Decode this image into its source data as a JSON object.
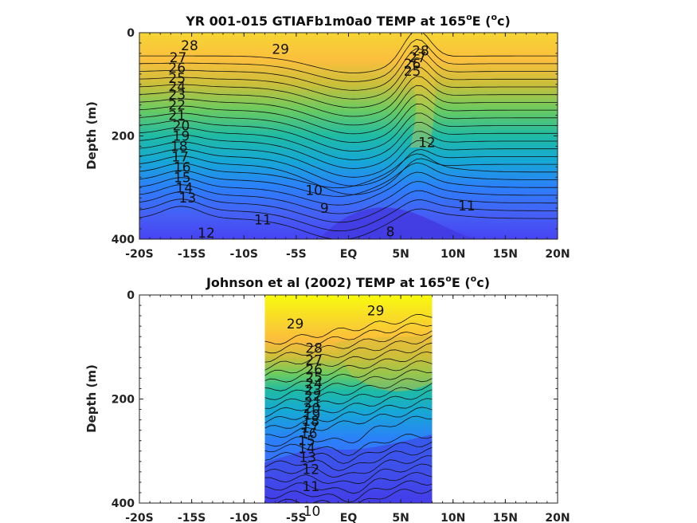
{
  "chart_data": [
    {
      "type": "heatmap",
      "subtype": "filled-contour",
      "title_main": "YR 001-015 GTIAFb1m0a0 TEMP at 165",
      "title_sup": "o",
      "title_rest": "E (",
      "title_sup2": "o",
      "title_end": "c)",
      "ylabel": "Depth (m)",
      "xlim": [
        -20,
        20
      ],
      "ylim": [
        0,
        400
      ],
      "y_reversed": true,
      "data_extent_x": [
        -20,
        20
      ],
      "x_tick_labels": [
        "-20S",
        "-15S",
        "-10S",
        "-5S",
        "EQ",
        "5N",
        "10N",
        "15N",
        "20N"
      ],
      "x_tick_values": [
        -20,
        -15,
        -10,
        -5,
        0,
        5,
        10,
        15,
        20
      ],
      "y_tick_labels": [
        "0",
        "200",
        "400"
      ],
      "y_tick_values": [
        0,
        200,
        400
      ],
      "colormap": [
        "#3e26a8",
        "#4743f3",
        "#2c7ffb",
        "#16a8d5",
        "#1fbba5",
        "#6ccb5f",
        "#cbbf3a",
        "#fdbc3c",
        "#f9d22f",
        "#f9fb0e"
      ],
      "contour_labels": [
        {
          "text": "28",
          "lat": -15.2,
          "depth": 25
        },
        {
          "text": "29",
          "lat": -6.5,
          "depth": 32
        },
        {
          "text": "28",
          "lat": 6.9,
          "depth": 35
        },
        {
          "text": "27",
          "lat": -16.3,
          "depth": 48
        },
        {
          "text": "26",
          "lat": -16.4,
          "depth": 68
        },
        {
          "text": "27",
          "lat": 6.6,
          "depth": 48
        },
        {
          "text": "26",
          "lat": 6.1,
          "depth": 60
        },
        {
          "text": "25",
          "lat": -16.4,
          "depth": 88
        },
        {
          "text": "25",
          "lat": 6.1,
          "depth": 74
        },
        {
          "text": "24",
          "lat": -16.4,
          "depth": 104
        },
        {
          "text": "23",
          "lat": -16.4,
          "depth": 120
        },
        {
          "text": "22",
          "lat": -16.4,
          "depth": 140
        },
        {
          "text": "21",
          "lat": -16.4,
          "depth": 160
        },
        {
          "text": "20",
          "lat": -16.0,
          "depth": 180
        },
        {
          "text": "19",
          "lat": -16.0,
          "depth": 200
        },
        {
          "text": "18",
          "lat": -16.2,
          "depth": 220
        },
        {
          "text": "17",
          "lat": -16.1,
          "depth": 240
        },
        {
          "text": "16",
          "lat": -15.9,
          "depth": 260
        },
        {
          "text": "15",
          "lat": -15.9,
          "depth": 280
        },
        {
          "text": "14",
          "lat": -15.7,
          "depth": 300
        },
        {
          "text": "13",
          "lat": -15.4,
          "depth": 320
        },
        {
          "text": "12",
          "lat": -13.6,
          "depth": 388
        },
        {
          "text": "12",
          "lat": 7.5,
          "depth": 212
        },
        {
          "text": "11",
          "lat": -8.2,
          "depth": 362
        },
        {
          "text": "11",
          "lat": 11.3,
          "depth": 335
        },
        {
          "text": "10",
          "lat": -3.3,
          "depth": 305
        },
        {
          "text": "9",
          "lat": -2.3,
          "depth": 340
        },
        {
          "text": "8",
          "lat": 4.0,
          "depth": 385
        }
      ]
    },
    {
      "type": "heatmap",
      "subtype": "filled-contour",
      "title_main": "Johnson et al (2002) TEMP at 165",
      "title_sup": "o",
      "title_rest": "E (",
      "title_sup2": "o",
      "title_end": "c)",
      "ylabel": "Depth (m)",
      "xlim": [
        -20,
        20
      ],
      "ylim": [
        0,
        400
      ],
      "y_reversed": true,
      "data_extent_x": [
        -8,
        8
      ],
      "x_tick_labels": [
        "-20S",
        "-15S",
        "-10S",
        "-5S",
        "EQ",
        "5N",
        "10N",
        "15N",
        "20N"
      ],
      "x_tick_values": [
        -20,
        -15,
        -10,
        -5,
        0,
        5,
        10,
        15,
        20
      ],
      "y_tick_labels": [
        "0",
        "200",
        "400"
      ],
      "y_tick_values": [
        0,
        200,
        400
      ],
      "colormap": [
        "#3e26a8",
        "#4743f3",
        "#2c7ffb",
        "#16a8d5",
        "#1fbba5",
        "#6ccb5f",
        "#cbbf3a",
        "#fdbc3c",
        "#f9d22f",
        "#f9fb0e"
      ],
      "contour_labels": [
        {
          "text": "29",
          "lat": -5.1,
          "depth": 55
        },
        {
          "text": "29",
          "lat": 2.6,
          "depth": 30
        },
        {
          "text": "28",
          "lat": -3.3,
          "depth": 102
        },
        {
          "text": "27",
          "lat": -3.3,
          "depth": 125
        },
        {
          "text": "26",
          "lat": -3.3,
          "depth": 143
        },
        {
          "text": "25",
          "lat": -3.3,
          "depth": 158
        },
        {
          "text": "24",
          "lat": -3.3,
          "depth": 170
        },
        {
          "text": "23",
          "lat": -3.4,
          "depth": 182
        },
        {
          "text": "22",
          "lat": -3.4,
          "depth": 194
        },
        {
          "text": "21",
          "lat": -3.4,
          "depth": 206
        },
        {
          "text": "20",
          "lat": -3.5,
          "depth": 218
        },
        {
          "text": "19",
          "lat": -3.5,
          "depth": 230
        },
        {
          "text": "18",
          "lat": -3.6,
          "depth": 242
        },
        {
          "text": "17",
          "lat": -3.7,
          "depth": 255
        },
        {
          "text": "16",
          "lat": -3.8,
          "depth": 266
        },
        {
          "text": "15",
          "lat": -4.0,
          "depth": 280
        },
        {
          "text": "14",
          "lat": -4.0,
          "depth": 294
        },
        {
          "text": "13",
          "lat": -3.9,
          "depth": 312
        },
        {
          "text": "12",
          "lat": -3.6,
          "depth": 335
        },
        {
          "text": "11",
          "lat": -3.6,
          "depth": 368
        },
        {
          "text": "10",
          "lat": -3.5,
          "depth": 415
        }
      ]
    }
  ]
}
